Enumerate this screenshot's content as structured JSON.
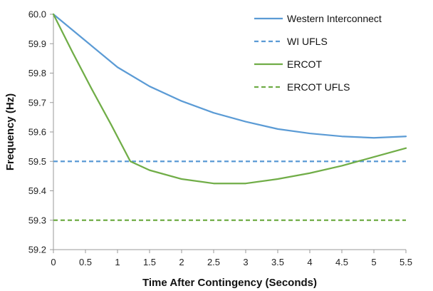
{
  "chart_data": {
    "type": "line",
    "title": "",
    "xlabel": "Time After Contingency (Seconds)",
    "ylabel": "Frequency (Hz)",
    "xlim": [
      0,
      5.5
    ],
    "ylim": [
      59.2,
      60.0
    ],
    "xticks": [
      0,
      0.5,
      1,
      1.5,
      2,
      2.5,
      3,
      3.5,
      4,
      4.5,
      5,
      5.5
    ],
    "xtick_labels": [
      "0",
      "0.5",
      "1",
      "1.5",
      "2",
      "2.5",
      "3",
      "3.5",
      "4",
      "4.5",
      "5",
      "5.5"
    ],
    "yticks": [
      59.2,
      59.3,
      59.4,
      59.5,
      59.6,
      59.7,
      59.8,
      59.9,
      60.0
    ],
    "ytick_labels": [
      "59.2",
      "59.3",
      "59.4",
      "59.5",
      "59.6",
      "59.7",
      "59.8",
      "59.9",
      "60.0"
    ],
    "grid": false,
    "legend_position": "top-right",
    "series": [
      {
        "name": "Western Interconnect",
        "color": "#5b9bd5",
        "style": "solid",
        "x": [
          0,
          0.5,
          1,
          1.5,
          2,
          2.5,
          3,
          3.5,
          4,
          4.5,
          5,
          5.5
        ],
        "y": [
          60.0,
          59.91,
          59.82,
          59.755,
          59.705,
          59.665,
          59.635,
          59.61,
          59.595,
          59.585,
          59.58,
          59.585
        ]
      },
      {
        "name": "WI UFLS",
        "color": "#5b9bd5",
        "style": "dashed",
        "x": [
          0,
          5.5
        ],
        "y": [
          59.5,
          59.5
        ]
      },
      {
        "name": "ERCOT",
        "color": "#70ad47",
        "style": "solid",
        "x": [
          0,
          0.3,
          0.6,
          0.9,
          1.2,
          1.5,
          2,
          2.5,
          3,
          3.5,
          4,
          4.5,
          5,
          5.5
        ],
        "y": [
          60.0,
          59.87,
          59.745,
          59.625,
          59.5,
          59.47,
          59.44,
          59.425,
          59.425,
          59.44,
          59.46,
          59.485,
          59.515,
          59.545
        ]
      },
      {
        "name": "ERCOT UFLS",
        "color": "#70ad47",
        "style": "dashed",
        "x": [
          0,
          5.5
        ],
        "y": [
          59.3,
          59.3
        ]
      }
    ]
  }
}
